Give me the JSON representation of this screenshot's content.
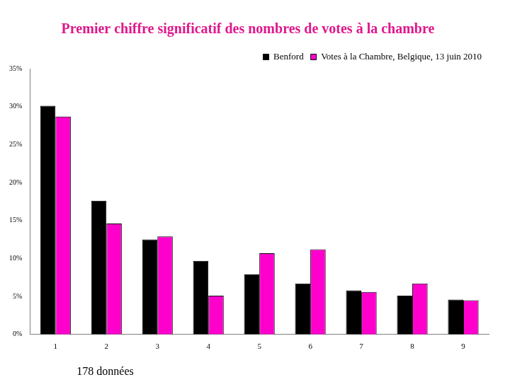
{
  "chart_data": {
    "type": "bar",
    "title": "Premier chiffre significatif des nombres de votes à la chambre",
    "categories": [
      "1",
      "2",
      "3",
      "4",
      "5",
      "6",
      "7",
      "8",
      "9"
    ],
    "series": [
      {
        "name": "Benford",
        "color": "#000000",
        "values": [
          30.1,
          17.6,
          12.5,
          9.7,
          7.9,
          6.7,
          5.8,
          5.1,
          4.6
        ]
      },
      {
        "name": "Votes à la Chambre, Belgique, 13 juin 2010",
        "color": "#ff00cc",
        "values": [
          28.7,
          14.6,
          12.9,
          5.1,
          10.7,
          11.2,
          5.6,
          6.7,
          4.5
        ]
      }
    ],
    "ylim": [
      0,
      35
    ],
    "yticks": [
      {
        "value": 0,
        "label": "0%"
      },
      {
        "value": 5,
        "label": "5%"
      },
      {
        "value": 10,
        "label": "10%"
      },
      {
        "value": 15,
        "label": "15%"
      },
      {
        "value": 20,
        "label": "20%"
      },
      {
        "value": 25,
        "label": "25%"
      },
      {
        "value": 30,
        "label": "30%"
      },
      {
        "value": 35,
        "label": "35%"
      }
    ],
    "grid": false,
    "legend": "top",
    "annotations": [
      "178 données"
    ]
  }
}
